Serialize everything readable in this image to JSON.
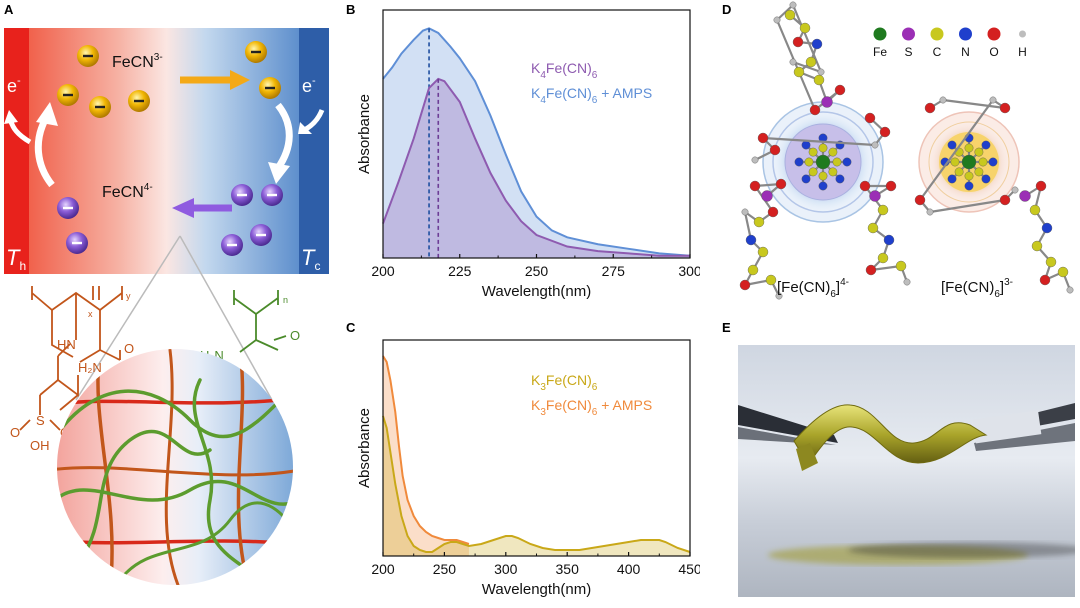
{
  "panels": {
    "a": {
      "label": "A",
      "ion3": "FeCN",
      "ion3_sup": "3-",
      "ion4": "FeCN",
      "ion4_sup": "4-",
      "electron": "e",
      "electron_sup": "-",
      "t_hot": "T",
      "t_hot_sub": "h",
      "t_cold": "T",
      "t_cold_sub": "c",
      "polymer_sub_x": "x",
      "polymer_sub_y": "y",
      "polymer_sub_n": "n",
      "chem_hn": "HN",
      "chem_h2n": "H₂N",
      "chem_o": "O",
      "chem_s": "S",
      "chem_oh": "OH",
      "chem_h2n_right": "H₂N",
      "chem_o_right": "O",
      "colors": {
        "hot": "#e8221c",
        "cold": "#2e5ea8",
        "oxidized_ion": "#f2b705",
        "reduced_ion": "#8a5cd6",
        "polymer_amps": "#c2561b",
        "polymer_am": "#4b8b2b"
      }
    },
    "b": {
      "label": "B"
    },
    "c": {
      "label": "C"
    },
    "d": {
      "label": "D",
      "legend": [
        {
          "symbol": "Fe",
          "color": "#1f7a1f"
        },
        {
          "symbol": "S",
          "color": "#9b2fb5"
        },
        {
          "symbol": "C",
          "color": "#c8c81e"
        },
        {
          "symbol": "N",
          "color": "#1f3fcc"
        },
        {
          "symbol": "O",
          "color": "#d42020"
        },
        {
          "symbol": "H",
          "color": "#bdbdbd"
        }
      ],
      "complex4": "[Fe(CN)",
      "complex4_sub": "6",
      "complex4_close": "]",
      "complex4_sup": "4-",
      "complex3": "[Fe(CN)",
      "complex3_sub": "6",
      "complex3_close": "]",
      "complex3_sup": "3-"
    },
    "e": {
      "label": "E"
    }
  },
  "chart_data": [
    {
      "type": "area",
      "panel": "B",
      "xlabel": "Wavelength(nm)",
      "ylabel": "Absorbance",
      "xlim": [
        200,
        300
      ],
      "xticks": [
        200,
        225,
        250,
        275,
        300
      ],
      "legend_position": "top-right",
      "grid": false,
      "series": [
        {
          "name": "K4Fe(CN)6",
          "name_base": "K",
          "name_sub1": "4",
          "name_mid": "Fe(CN)",
          "name_sub2": "6",
          "name_tail": "",
          "color": "#8e5bb0",
          "x": [
            200,
            205,
            210,
            215,
            218,
            220,
            225,
            230,
            235,
            240,
            245,
            250,
            260,
            270,
            280,
            290,
            300
          ],
          "y": [
            0.15,
            0.33,
            0.52,
            0.74,
            0.78,
            0.77,
            0.68,
            0.52,
            0.37,
            0.25,
            0.16,
            0.1,
            0.05,
            0.03,
            0.02,
            0.01,
            0.01
          ],
          "peak_x": 218
        },
        {
          "name": "K4Fe(CN)6 + AMPS",
          "name_base": "K",
          "name_sub1": "4",
          "name_mid": "Fe(CN)",
          "name_sub2": "6",
          "name_tail": " + AMPS",
          "color": "#5f8fd6",
          "x": [
            200,
            203,
            206,
            210,
            213,
            215,
            218,
            222,
            225,
            230,
            235,
            240,
            245,
            250,
            255,
            260,
            270,
            280,
            290,
            300
          ],
          "y": [
            0.78,
            0.83,
            0.89,
            0.95,
            0.99,
            1.0,
            0.98,
            0.92,
            0.87,
            0.77,
            0.62,
            0.45,
            0.29,
            0.18,
            0.12,
            0.09,
            0.06,
            0.04,
            0.02,
            0.01
          ],
          "peak_x": 215
        }
      ]
    },
    {
      "type": "area",
      "panel": "C",
      "xlabel": "Wavelength(nm)",
      "ylabel": "Absorbance",
      "xlim": [
        200,
        450
      ],
      "xticks": [
        200,
        250,
        300,
        350,
        400,
        450
      ],
      "legend_position": "top-right",
      "grid": false,
      "series": [
        {
          "name": "K3Fe(CN)6",
          "name_base": "K",
          "name_sub1": "3",
          "name_mid": "Fe(CN)",
          "name_sub2": "6",
          "name_tail": "",
          "color": "#c9a818",
          "x": [
            200,
            203,
            206,
            210,
            215,
            220,
            225,
            230,
            235,
            240,
            245,
            250,
            255,
            260,
            265,
            270,
            280,
            290,
            300,
            305,
            310,
            320,
            330,
            340,
            350,
            360,
            370,
            380,
            390,
            400,
            410,
            420,
            425,
            430,
            440,
            450
          ],
          "y": [
            0.7,
            0.64,
            0.52,
            0.36,
            0.2,
            0.1,
            0.05,
            0.03,
            0.02,
            0.02,
            0.04,
            0.06,
            0.07,
            0.07,
            0.06,
            0.05,
            0.06,
            0.08,
            0.1,
            0.1,
            0.09,
            0.06,
            0.04,
            0.03,
            0.03,
            0.03,
            0.04,
            0.05,
            0.06,
            0.07,
            0.08,
            0.08,
            0.08,
            0.07,
            0.04,
            0.02
          ]
        },
        {
          "name": "K3Fe(CN)6 + AMPS",
          "name_base": "K",
          "name_sub1": "3",
          "name_mid": "Fe(CN)",
          "name_sub2": "6",
          "name_tail": " + AMPS",
          "color": "#f08a3c",
          "x": [
            200,
            203,
            206,
            210,
            213,
            216,
            220,
            225,
            230,
            235,
            240,
            245,
            250,
            255,
            260,
            265,
            270
          ],
          "y": [
            1.0,
            0.97,
            0.88,
            0.72,
            0.55,
            0.4,
            0.28,
            0.2,
            0.15,
            0.12,
            0.1,
            0.09,
            0.08,
            0.08,
            0.08,
            0.07,
            0.06
          ]
        }
      ]
    }
  ]
}
